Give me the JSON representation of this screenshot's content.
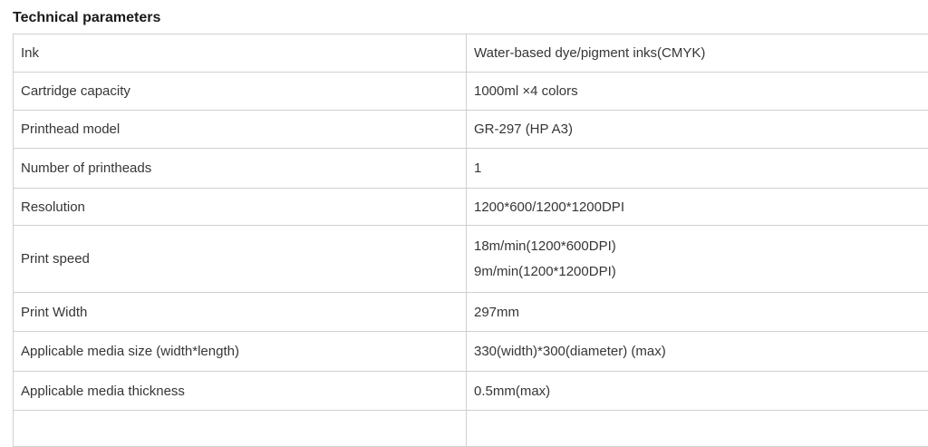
{
  "title": "Technical parameters",
  "colors": {
    "background": "#ffffff",
    "border": "#cfcfcf",
    "cell_text": "#363636",
    "title_text": "#1a1a1a"
  },
  "table": {
    "columns": [
      "parameter",
      "value"
    ],
    "rows": [
      {
        "param": "Ink",
        "value": "Water-based dye/pigment inks(CMYK)"
      },
      {
        "param": "Cartridge capacity",
        "value": "1000ml ×4 colors"
      },
      {
        "param": "Printhead model",
        "value": "GR-297 (HP A3)"
      },
      {
        "param": "Number of printheads",
        "value": "1"
      },
      {
        "param": "Resolution",
        "value": "1200*600/1200*1200DPI"
      },
      {
        "param": "Print speed",
        "value_lines": [
          "18m/min(1200*600DPI)",
          "9m/min(1200*1200DPI)"
        ]
      },
      {
        "param": "Print Width",
        "value": "297mm"
      },
      {
        "param": "Applicable media size (width*length)",
        "value": "330(width)*300(diameter) (max)"
      },
      {
        "param": "Applicable media thickness",
        "value": "0.5mm(max)"
      },
      {
        "param": "",
        "value": ""
      }
    ]
  }
}
